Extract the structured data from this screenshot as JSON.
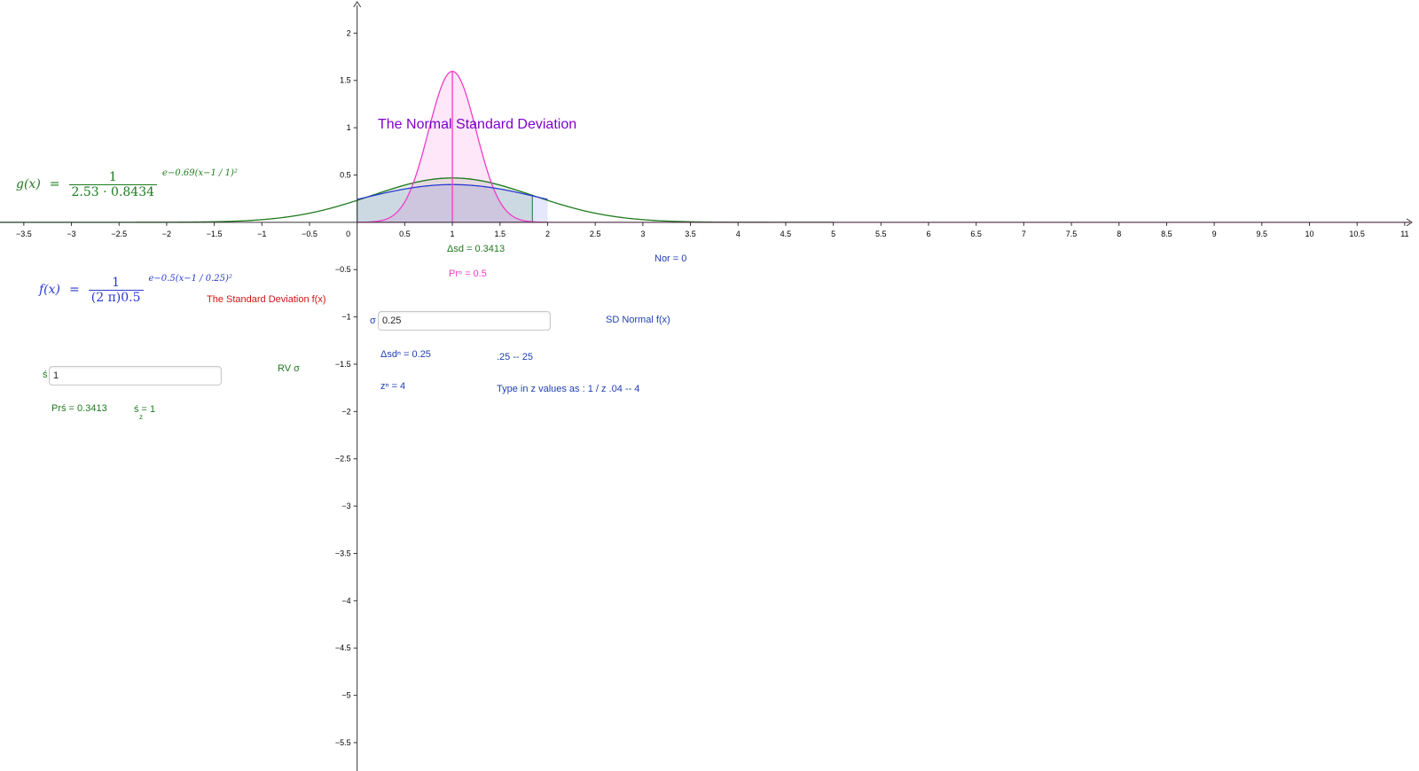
{
  "app": {
    "title": "The Normal Standard Deviation"
  },
  "axes": {
    "x_ticks": [
      "-3.5",
      "-3",
      "-2.5",
      "-2",
      "-1.5",
      "-1",
      "-0.5",
      "0",
      "0.5",
      "1",
      "1.5",
      "2",
      "2.5",
      "3",
      "3.5",
      "4",
      "4.5",
      "5",
      "5.5",
      "6",
      "6.5",
      "7",
      "7.5",
      "8",
      "8.5",
      "9",
      "9.5",
      "10",
      "10.5",
      "11"
    ],
    "y_ticks": [
      "2",
      "1.5",
      "1",
      "0.5",
      "-0.5",
      "-1",
      "-1.5",
      "-2",
      "-2.5",
      "-3",
      "-3.5",
      "-4",
      "-4.5",
      "-5",
      "-5.5"
    ],
    "x_range": [
      -3.75,
      11.15
    ],
    "y_range": [
      -5.8,
      2.35
    ],
    "grid": false
  },
  "formulas": {
    "g": {
      "lhs": "g(x)",
      "eq": "=",
      "numerator": "1",
      "denominator": "2.53 · 0.8434",
      "exponent": "e−0.69(x−1 / 1)²"
    },
    "f": {
      "lhs": "f(x)",
      "eq": "=",
      "numerator": "1",
      "denominator": "(2 π)0.5",
      "exponent": "e−0.5(x−1 / 0.25)²"
    }
  },
  "labels": {
    "std_dev_fx": "The Standard Deviation f(x)",
    "delta_sd": "Δsd = 0.3413",
    "pr_n": "Prⁿ = 0.5",
    "nor": "Nor = 0",
    "sd_normal": "SD Normal f(x)",
    "delta_sd_n": "Δsdⁿ = 0.25",
    "z_n": "zⁿ  = 4",
    "range_hint": ".25  --   25",
    "type_hint": "Type in z values as : 1 / z    .04  --  4",
    "rv_sigma": "RV σ",
    "pr_s": "Prś = 0.3413",
    "s_z": "ś = 1",
    "s_z_sub": "z"
  },
  "inputs": {
    "sigma": {
      "caption": "σ",
      "value": "0.25"
    },
    "s": {
      "caption": "ś",
      "value": "1"
    }
  },
  "colors": {
    "pink_curve": "#f03cc8",
    "green_curve": "#1e7a1e",
    "blue_curve": "#2a3ad2",
    "title": "#7f00c8",
    "axis": "#333333"
  },
  "chart_data": {
    "type": "line",
    "title": "The Normal Standard Deviation",
    "series": [
      {
        "name": "g(x)",
        "mean": 1,
        "sd": 0.8434,
        "peak": 0.4687,
        "shade_interval": [
          0,
          1.84
        ]
      },
      {
        "name": "f(x)",
        "mean": 1,
        "sd": 0.25,
        "peak": 1.5958,
        "shade_interval": [
          0,
          2
        ]
      },
      {
        "mean": 1,
        "sd": 1,
        "peak": 0.3989,
        "shade_interval": [
          0,
          2
        ]
      }
    ],
    "vertical_line_x": 1
  }
}
